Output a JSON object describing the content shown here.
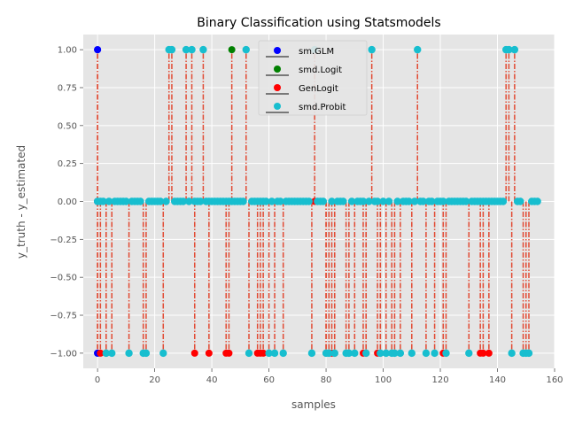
{
  "chart_data": {
    "type": "scatter",
    "title": "Binary Classification using Statsmodels",
    "xlabel": "samples",
    "ylabel": "y_truth - y_estimated",
    "xlim": [
      -5,
      160
    ],
    "ylim": [
      -1.1,
      1.1
    ],
    "x_ticks": [
      0,
      20,
      40,
      60,
      80,
      100,
      120,
      140,
      160
    ],
    "y_ticks": [
      -1.0,
      -0.75,
      -0.5,
      -0.25,
      0.0,
      0.25,
      0.5,
      0.75,
      1.0
    ],
    "x_tick_labels": [
      "0",
      "20",
      "40",
      "60",
      "80",
      "100",
      "120",
      "140",
      "160"
    ],
    "y_tick_labels": [
      "−1.00",
      "−0.75",
      "−0.50",
      "−0.25",
      "0.00",
      "0.25",
      "0.50",
      "0.75",
      "1.00"
    ],
    "grid": true,
    "legend_position": "top-center",
    "stem_color": "#E24A33",
    "series": [
      {
        "name": "sm.GLM",
        "color": "#0000ff",
        "x": [
          0,
          0,
          0,
          0,
          0,
          0
        ],
        "y": [
          1,
          1,
          0,
          0,
          -1,
          -1
        ]
      },
      {
        "name": "smd.Logit",
        "color": "#008000",
        "x": [
          47
        ],
        "y": [
          1
        ]
      },
      {
        "name": "GenLogit",
        "color": "#ff0000",
        "x": [
          1,
          3,
          34,
          39,
          45,
          46,
          56,
          57,
          58,
          76,
          80,
          82,
          83,
          93,
          94,
          98,
          99,
          121,
          134,
          135,
          137
        ],
        "y": [
          -1,
          -1,
          -1,
          -1,
          -1,
          -1,
          -1,
          -1,
          -1,
          0,
          -1,
          -1,
          -1,
          -1,
          -1,
          -1,
          -1,
          -1,
          -1,
          -1,
          -1
        ]
      },
      {
        "name": "smd.Probit",
        "color": "#17becf",
        "x": [
          0,
          1,
          2,
          3,
          4,
          5,
          6,
          7,
          8,
          9,
          10,
          11,
          12,
          13,
          14,
          15,
          16,
          17,
          18,
          19,
          20,
          21,
          22,
          23,
          24,
          25,
          26,
          27,
          28,
          29,
          30,
          31,
          32,
          33,
          34,
          35,
          36,
          37,
          38,
          39,
          40,
          41,
          42,
          43,
          44,
          45,
          46,
          47,
          48,
          49,
          50,
          51,
          52,
          53,
          54,
          55,
          56,
          57,
          58,
          59,
          60,
          61,
          62,
          63,
          64,
          65,
          66,
          67,
          68,
          69,
          70,
          71,
          72,
          73,
          74,
          75,
          76,
          77,
          78,
          79,
          80,
          81,
          82,
          83,
          84,
          85,
          86,
          87,
          88,
          89,
          90,
          91,
          92,
          93,
          94,
          95,
          96,
          97,
          98,
          99,
          100,
          101,
          102,
          103,
          104,
          105,
          106,
          107,
          108,
          109,
          110,
          111,
          112,
          113,
          114,
          115,
          116,
          117,
          118,
          119,
          120,
          121,
          122,
          123,
          124,
          125,
          126,
          127,
          128,
          129,
          130,
          131,
          132,
          133,
          134,
          135,
          136,
          137,
          138,
          139,
          140,
          141,
          142,
          143,
          144,
          145,
          146,
          147,
          148,
          149,
          150,
          151,
          152,
          153,
          154
        ],
        "y": [
          0,
          0,
          0,
          -1,
          0,
          -1,
          0,
          0,
          0,
          0,
          0,
          -1,
          0,
          0,
          0,
          0,
          -1,
          -1,
          0,
          0,
          0,
          0,
          0,
          -1,
          0,
          1,
          1,
          0,
          0,
          0,
          0,
          1,
          0,
          1,
          0,
          0,
          0,
          1,
          0,
          0,
          0,
          0,
          0,
          0,
          0,
          0,
          0,
          0,
          0,
          0,
          0,
          0,
          1,
          -1,
          0,
          0,
          0,
          0,
          0,
          0,
          -1,
          0,
          -1,
          0,
          0,
          -1,
          0,
          0,
          0,
          0,
          0,
          0,
          0,
          0,
          0,
          -1,
          1,
          0,
          0,
          0,
          -1,
          -1,
          0,
          -1,
          0,
          0,
          0,
          -1,
          -1,
          0,
          -1,
          0,
          0,
          0,
          -1,
          0,
          1,
          0,
          0,
          -1,
          0,
          -1,
          0,
          -1,
          -1,
          0,
          -1,
          0,
          0,
          0,
          -1,
          0,
          1,
          0,
          0,
          -1,
          0,
          0,
          -1,
          0,
          0,
          0,
          -1,
          0,
          0,
          0,
          0,
          0,
          0,
          0,
          -1,
          0,
          0,
          0,
          0,
          0,
          0,
          0,
          0,
          0,
          0,
          0,
          0,
          1,
          1,
          -1,
          1,
          0,
          0,
          -1,
          -1,
          -1,
          0,
          0,
          0
        ]
      }
    ]
  }
}
